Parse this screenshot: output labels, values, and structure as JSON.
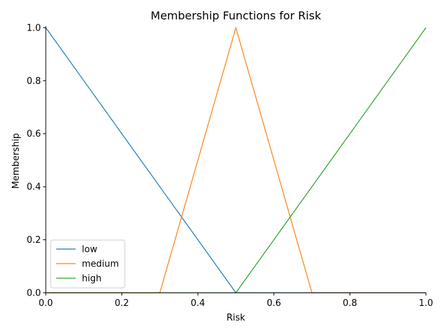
{
  "chart_data": {
    "type": "line",
    "title": "Membership Functions for Risk",
    "xlabel": "Risk",
    "ylabel": "Membership",
    "xlim": [
      0,
      1
    ],
    "ylim": [
      0,
      1.005
    ],
    "xticks": [
      "0.0",
      "0.2",
      "0.4",
      "0.6",
      "0.8",
      "1.0"
    ],
    "yticks": [
      "0.0",
      "0.2",
      "0.4",
      "0.6",
      "0.8",
      "1.0"
    ],
    "grid": false,
    "legend_position": "lower-left",
    "series": [
      {
        "name": "low",
        "color": "#1f77b4",
        "x": [
          0,
          0.5,
          1.0
        ],
        "y": [
          1,
          0,
          0
        ]
      },
      {
        "name": "medium",
        "color": "#ff7f0e",
        "x": [
          0,
          0.3,
          0.5,
          0.7,
          1.0
        ],
        "y": [
          0,
          0,
          1,
          0,
          0
        ]
      },
      {
        "name": "high",
        "color": "#2ca02c",
        "x": [
          0,
          0.5,
          1.0
        ],
        "y": [
          0,
          0,
          1
        ]
      }
    ]
  }
}
